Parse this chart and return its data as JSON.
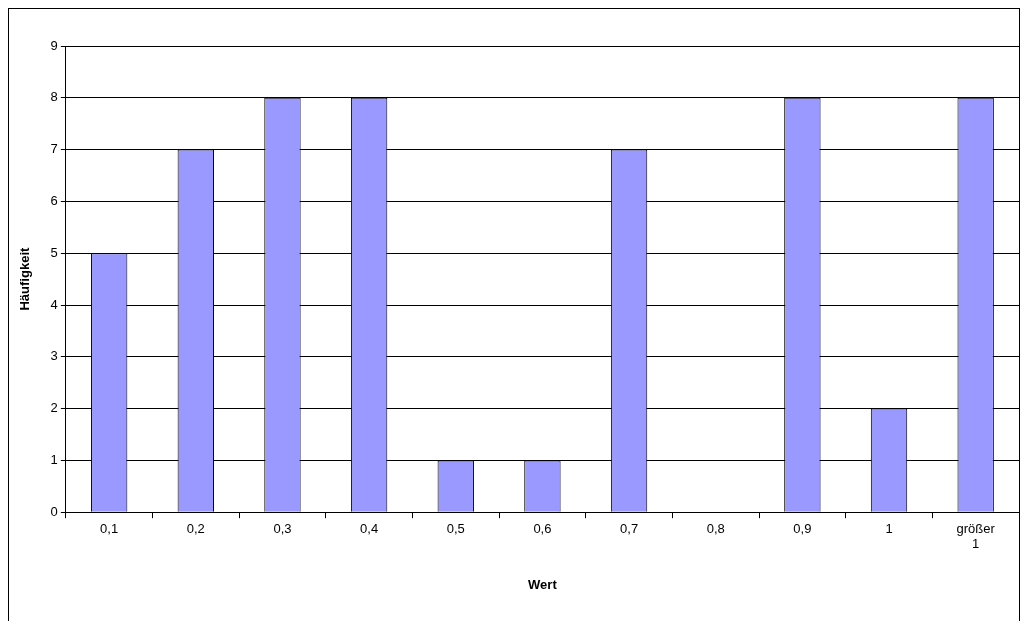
{
  "chart_data": {
    "type": "bar",
    "xlabel": "Wert",
    "ylabel": "Häufigkeit",
    "categories": [
      "0,1",
      "0,2",
      "0,3",
      "0,4",
      "0,5",
      "0,6",
      "0,7",
      "0,8",
      "0,9",
      "1",
      "größer 1"
    ],
    "values": [
      5,
      7,
      8,
      8,
      1,
      1,
      7,
      0,
      8,
      2,
      8
    ],
    "color": "#9999ff",
    "ylim": [
      0,
      9
    ],
    "yticks": [
      0,
      1,
      2,
      3,
      4,
      5,
      6,
      7,
      8,
      9
    ],
    "grid": "y",
    "legend": false
  }
}
